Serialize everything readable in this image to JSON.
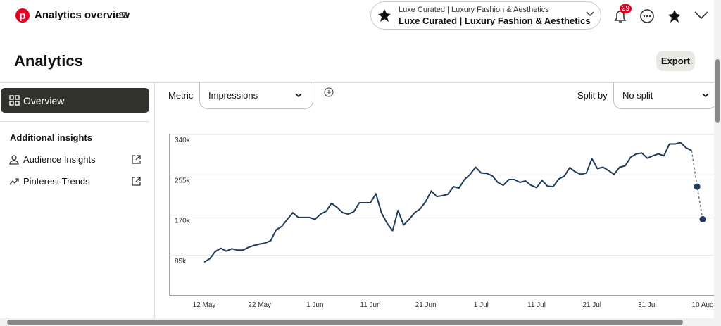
{
  "header": {
    "title": "Analytics overview",
    "account_small": "Luxe Curated | Luxury Fashion & Aesthetics",
    "account_name": "Luxe Curated | Luxury Fashion & Aesthetics",
    "notification_count": 29
  },
  "page": {
    "title": "Analytics",
    "export": "Export"
  },
  "sidebar": {
    "overview": "Overview",
    "section": "Additional insights",
    "links": [
      "Audience Insights",
      "Pinterest Trends"
    ]
  },
  "controls": {
    "metric_label": "Metric",
    "metric": "Impressions",
    "split_label": "Split by",
    "split": "No split"
  },
  "chart_data": {
    "type": "line",
    "color": "#1f3a5a",
    "categories": [
      "12 May",
      null,
      null,
      null,
      null,
      null,
      null,
      null,
      null,
      null,
      "22 May",
      null,
      null,
      null,
      null,
      null,
      null,
      null,
      null,
      null,
      "1 Jun",
      null,
      null,
      null,
      null,
      null,
      null,
      null,
      null,
      null,
      "11 Jun",
      null,
      null,
      null,
      null,
      null,
      null,
      null,
      null,
      null,
      "21 Jun",
      null,
      null,
      null,
      null,
      null,
      null,
      null,
      null,
      null,
      "1 Jul",
      null,
      null,
      null,
      null,
      null,
      null,
      null,
      null,
      null,
      "11 Jul",
      null,
      null,
      null,
      null,
      null,
      null,
      null,
      null,
      null,
      "21 Jul",
      null,
      null,
      null,
      null,
      null,
      null,
      null,
      null,
      null,
      "31 Jul",
      null,
      null,
      null,
      null,
      null,
      null,
      null,
      null,
      null,
      "10 Aug"
    ],
    "values": [
      71000,
      78000,
      93000,
      100000,
      94000,
      99000,
      96000,
      96000,
      102000,
      106000,
      109000,
      111000,
      116000,
      139000,
      146000,
      161000,
      175000,
      165000,
      165000,
      165000,
      161000,
      172000,
      178000,
      195000,
      186000,
      175000,
      172000,
      177000,
      196000,
      196000,
      196000,
      215000,
      175000,
      153000,
      137000,
      180000,
      149000,
      161000,
      175000,
      183000,
      199000,
      221000,
      209000,
      211000,
      214000,
      230000,
      227000,
      245000,
      256000,
      271000,
      259000,
      258000,
      253000,
      239000,
      233000,
      245000,
      245000,
      239000,
      242000,
      233000,
      228000,
      243000,
      231000,
      230000,
      246000,
      252000,
      270000,
      261000,
      256000,
      259000,
      289000,
      268000,
      271000,
      264000,
      256000,
      271000,
      274000,
      292000,
      299000,
      301000,
      290000,
      295000,
      299000,
      295000,
      320000,
      320000,
      323000,
      312000,
      306000,
      230000,
      161000
    ],
    "ylim": [
      0,
      340000
    ],
    "yticks": [
      {
        "value": 85000,
        "label": "85k"
      },
      {
        "value": 170000,
        "label": "170k"
      },
      {
        "value": 255000,
        "label": "255k"
      },
      {
        "value": 340000,
        "label": "340k"
      }
    ],
    "grid": true
  }
}
